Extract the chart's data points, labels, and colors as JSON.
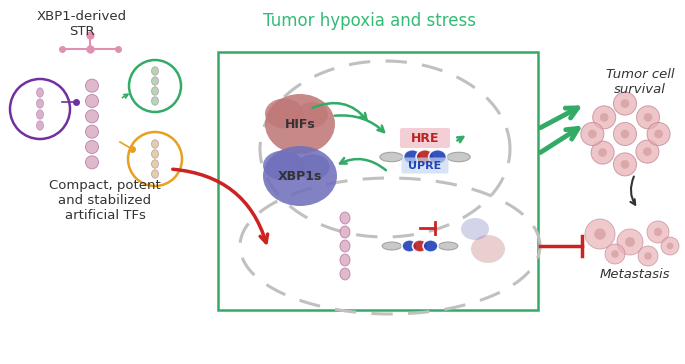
{
  "title": "Tumor hypoxia and stress",
  "title_color": "#33bb77",
  "label_xbp1": "XBP1-derived\nSTR",
  "label_compact": "Compact, potent\nand stabilized\nartificial TFs",
  "label_hre": "HRE",
  "label_upre": "UPRE",
  "label_tumor_cell": "Tumor cell\nsurvival",
  "label_metastasis": "Metastasis",
  "bg_color": "#ffffff",
  "green": "#33aa66",
  "red": "#cc2222",
  "purple": "#7030a0",
  "green_circle": "#33aa66",
  "orange": "#e8a020",
  "blue_dna": "#2244bb",
  "red_dna": "#bb2222",
  "gray_dna": "#bbbbbb",
  "hifs_color": "#c07878",
  "xbp1s_color": "#7070bb",
  "pink_helix": "#d4a0b8",
  "cell_color": "#e8b0b5",
  "cell_edge": "#c08090"
}
